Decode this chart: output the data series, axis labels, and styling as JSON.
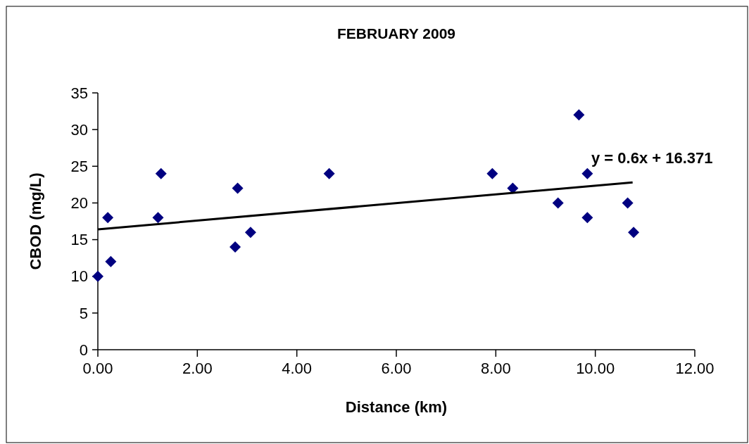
{
  "chart_data": {
    "type": "scatter",
    "title": "FEBRUARY 2009",
    "xlabel": "Distance (km)",
    "ylabel": "CBOD (mg/L)",
    "xlim": [
      0,
      12
    ],
    "xticks": [
      {
        "value": 0,
        "label": "0.00"
      },
      {
        "value": 2,
        "label": "2.00"
      },
      {
        "value": 4,
        "label": "4.00"
      },
      {
        "value": 6,
        "label": "6.00"
      },
      {
        "value": 8,
        "label": "8.00"
      },
      {
        "value": 10,
        "label": "10.00"
      },
      {
        "value": 12,
        "label": "12.00"
      }
    ],
    "ylim": [
      0,
      35
    ],
    "yticks": [
      0,
      5,
      10,
      15,
      20,
      25,
      30,
      35
    ],
    "grid": false,
    "marker": "diamond",
    "series": [
      {
        "color": "#000080",
        "x": [
          0,
          0.2,
          0.26,
          1.21,
          1.27,
          2.76,
          2.81,
          3.07,
          4.65,
          7.93,
          8.34,
          9.25,
          9.67,
          9.84,
          9.84,
          10.65,
          10.77
        ],
        "values": [
          10,
          18,
          12,
          18,
          24,
          14,
          22,
          16,
          24,
          24,
          22,
          20,
          32,
          24,
          18,
          20,
          16
        ]
      },
      {
        "type": "line",
        "color": "#000000",
        "marker": "none",
        "line_style": "solid",
        "x": [
          0,
          10.75
        ],
        "values": [
          16.4,
          22.8
        ]
      }
    ],
    "annotations": [
      "y = 0.6x + 16.371"
    ]
  }
}
